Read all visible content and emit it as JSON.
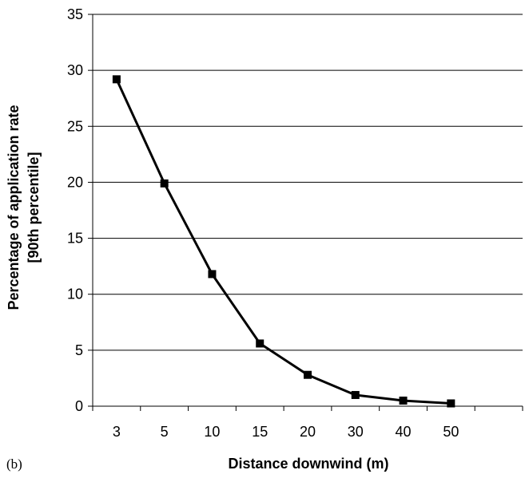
{
  "panel_label": "(b)",
  "chart_data": {
    "type": "line",
    "title": "",
    "xlabel": "Distance downwind (m)",
    "ylabel_lines": [
      "Percentage of application rate",
      "[90th percentile]"
    ],
    "categories": [
      "3",
      "5",
      "10",
      "15",
      "20",
      "30",
      "40",
      "50"
    ],
    "series": [
      {
        "values": [
          29.2,
          19.9,
          11.8,
          5.6,
          2.8,
          1.0,
          0.5,
          0.25
        ]
      }
    ],
    "ylim": [
      0,
      35
    ],
    "yticks": [
      0,
      5,
      10,
      15,
      20,
      25,
      30,
      35
    ],
    "grid": "horizontal",
    "legend": "none",
    "line_color": "#000000",
    "marker": "square"
  }
}
